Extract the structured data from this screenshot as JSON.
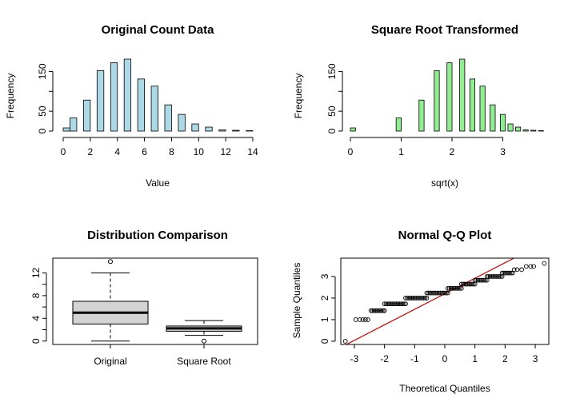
{
  "chart_data": [
    {
      "type": "bar",
      "title": "Original Count Data",
      "xlabel": "Value",
      "ylabel": "Frequency",
      "bins": [
        [
          0,
          0.5
        ],
        [
          0.5,
          1
        ],
        [
          1.5,
          2
        ],
        [
          2.5,
          3
        ],
        [
          3.5,
          4
        ],
        [
          4.5,
          5
        ],
        [
          5.5,
          6
        ],
        [
          6.5,
          7
        ],
        [
          7.5,
          8
        ],
        [
          8.5,
          9
        ],
        [
          9.5,
          10
        ],
        [
          10.5,
          11
        ],
        [
          11.5,
          12
        ],
        [
          12.5,
          13
        ],
        [
          13.5,
          14
        ]
      ],
      "values": [
        8,
        33,
        78,
        152,
        172,
        181,
        131,
        113,
        66,
        42,
        18,
        10,
        3,
        2,
        1
      ],
      "xticks": [
        0,
        2,
        4,
        6,
        8,
        10,
        12,
        14
      ],
      "yticks": [
        0,
        50,
        100,
        150
      ],
      "ytick_labels": [
        "0",
        "50",
        "",
        "150"
      ],
      "xlim": [
        0,
        14
      ],
      "ylim": [
        0,
        185
      ],
      "fill": "#add8e6"
    },
    {
      "type": "bar",
      "title": "Square Root Transformed",
      "xlabel": "sqrt(x)",
      "ylabel": "Frequency",
      "bins": [
        [
          0,
          0.1
        ],
        [
          0.9,
          1.0
        ],
        [
          1.35,
          1.45
        ],
        [
          1.65,
          1.75
        ],
        [
          1.9,
          2.0
        ],
        [
          2.15,
          2.25
        ],
        [
          2.35,
          2.45
        ],
        [
          2.55,
          2.65
        ],
        [
          2.75,
          2.85
        ],
        [
          2.95,
          3.05
        ],
        [
          3.1,
          3.2
        ],
        [
          3.25,
          3.35
        ],
        [
          3.4,
          3.5
        ],
        [
          3.55,
          3.65
        ],
        [
          3.7,
          3.8
        ]
      ],
      "values": [
        8,
        33,
        78,
        152,
        172,
        181,
        131,
        113,
        66,
        42,
        18,
        10,
        3,
        2,
        1
      ],
      "xticks": [
        0,
        1,
        2,
        3
      ],
      "yticks": [
        0,
        50,
        100,
        150
      ],
      "ytick_labels": [
        "0",
        "50",
        "",
        "150"
      ],
      "xlim": [
        0,
        3.7
      ],
      "ylim": [
        0,
        185
      ],
      "fill": "#90ee90"
    },
    {
      "type": "box",
      "title": "Distribution Comparison",
      "categories": [
        "Original",
        "Square Root"
      ],
      "boxes": [
        {
          "min": 0,
          "q1": 3,
          "median": 5,
          "q3": 7,
          "max": 12,
          "outliers": [
            14
          ]
        },
        {
          "min": 1,
          "q1": 1.73,
          "median": 2.24,
          "q3": 2.65,
          "max": 3.61,
          "outliers": [
            0
          ]
        }
      ],
      "yticks": [
        0,
        4,
        8,
        12
      ],
      "ytick_labels": [
        "0",
        "4",
        "8",
        "12"
      ],
      "extra_ticks": [
        2,
        6,
        10
      ],
      "ylim": [
        -0.6,
        14.6
      ],
      "fill": "#d3d3d3"
    },
    {
      "type": "scatter",
      "title": "Normal Q-Q Plot",
      "xlabel": "Theoretical Quantiles",
      "ylabel": "Sample Quantiles",
      "xticks": [
        -3,
        -2,
        -1,
        0,
        1,
        2,
        3
      ],
      "yticks": [
        0,
        1,
        2,
        3
      ],
      "xlim": [
        -3.45,
        3.45
      ],
      "ylim": [
        -0.15,
        3.85
      ],
      "line": {
        "intercept": 2.2,
        "slope": 0.72,
        "color": "#cc0000"
      },
      "groups": [
        {
          "y": 0,
          "xs": [
            -3.3
          ]
        },
        {
          "y": 1,
          "xs": [
            -2.95,
            -2.82,
            -2.72,
            -2.63,
            -2.55
          ]
        },
        {
          "y": 1.414,
          "x_from": -2.45,
          "x_to": -2.0
        },
        {
          "y": 1.732,
          "x_from": -2.0,
          "x_to": -1.3
        },
        {
          "y": 2,
          "x_from": -1.3,
          "x_to": -0.6
        },
        {
          "y": 2.236,
          "x_from": -0.6,
          "x_to": 0.1
        },
        {
          "y": 2.449,
          "x_from": 0.1,
          "x_to": 0.55
        },
        {
          "y": 2.646,
          "x_from": 0.55,
          "x_to": 1.0
        },
        {
          "y": 2.828,
          "x_from": 1.0,
          "x_to": 1.4
        },
        {
          "y": 3,
          "x_from": 1.4,
          "x_to": 1.9
        },
        {
          "y": 3.162,
          "x_from": 1.9,
          "x_to": 2.25
        },
        {
          "y": 3.317,
          "xs": [
            2.3,
            2.4,
            2.55
          ]
        },
        {
          "y": 3.464,
          "xs": [
            2.7,
            2.85,
            2.95
          ]
        },
        {
          "y": 3.606,
          "xs": [
            3.3
          ]
        }
      ]
    }
  ]
}
